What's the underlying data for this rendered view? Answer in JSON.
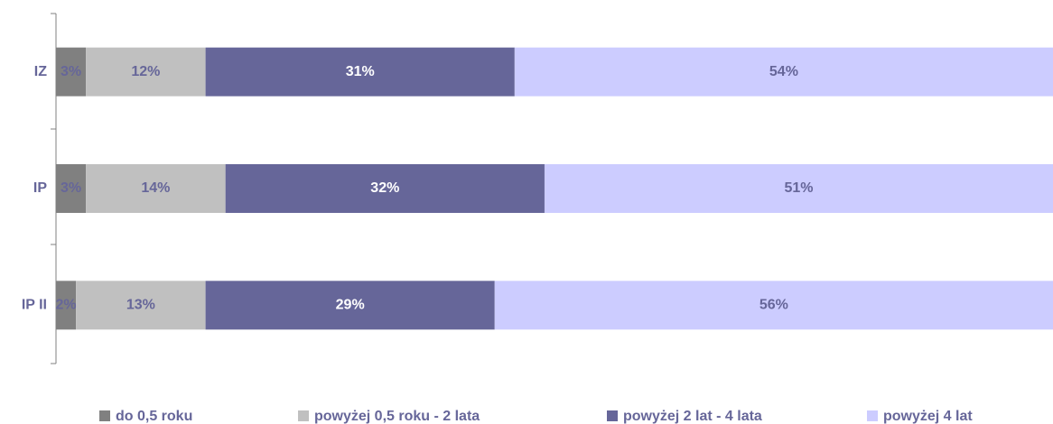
{
  "chart_data": {
    "type": "stacked_bar_horizontal",
    "categories": [
      "IZ",
      "IP",
      "IP II"
    ],
    "series": [
      {
        "name": "do 0,5 roku",
        "color": "#808080",
        "values": [
          3,
          3,
          2
        ],
        "value_labels": [
          "3%",
          "3%",
          "2%"
        ]
      },
      {
        "name": "powyżej 0,5 roku - 2 lata",
        "color": "#c0c0c0",
        "values": [
          12,
          14,
          13
        ],
        "value_labels": [
          "12%",
          "14%",
          "13%"
        ]
      },
      {
        "name": "powyżej 2 lat - 4 lata",
        "color": "#666699",
        "values": [
          31,
          32,
          29
        ],
        "value_labels": [
          "31%",
          "32%",
          "29%"
        ]
      },
      {
        "name": "powyżej 4 lat",
        "color": "#ccccff",
        "values": [
          54,
          51,
          56
        ],
        "value_labels": [
          "54%",
          "51%",
          "56%"
        ]
      }
    ],
    "legend": "bottom"
  }
}
